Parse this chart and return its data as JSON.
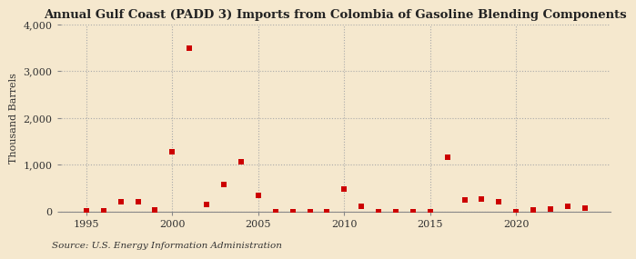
{
  "title": "Annual Gulf Coast (PADD 3) Imports from Colombia of Gasoline Blending Components",
  "ylabel": "Thousand Barrels",
  "source": "Source: U.S. Energy Information Administration",
  "background_color": "#f5e8ce",
  "plot_background_color": "#f5e8ce",
  "marker_color": "#cc0000",
  "marker": "s",
  "marker_size": 16,
  "xlim": [
    1993.5,
    2025.5
  ],
  "ylim": [
    0,
    4000
  ],
  "yticks": [
    0,
    1000,
    2000,
    3000,
    4000
  ],
  "xticks": [
    1995,
    2000,
    2005,
    2010,
    2015,
    2020
  ],
  "years": [
    1995,
    1996,
    1997,
    1998,
    1999,
    2000,
    2001,
    2002,
    2003,
    2004,
    2005,
    2006,
    2007,
    2008,
    2009,
    2010,
    2011,
    2012,
    2013,
    2014,
    2015,
    2016,
    2017,
    2018,
    2019,
    2020,
    2021,
    2022,
    2023,
    2024
  ],
  "values": [
    2,
    5,
    200,
    210,
    35,
    1280,
    3490,
    140,
    570,
    1060,
    340,
    0,
    0,
    0,
    0,
    480,
    110,
    0,
    0,
    0,
    0,
    1150,
    250,
    270,
    200,
    0,
    25,
    50,
    100,
    70
  ],
  "title_fontsize": 9.5,
  "ylabel_fontsize": 8,
  "tick_fontsize": 8,
  "source_fontsize": 7.5
}
